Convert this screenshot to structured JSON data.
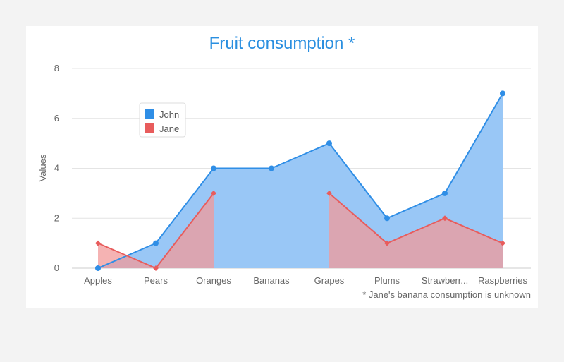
{
  "chart_data": {
    "type": "area",
    "title": "Fruit consumption *",
    "ylabel": "Values",
    "xlabel": "",
    "ylim": [
      0,
      8
    ],
    "yticks": [
      "0",
      "2",
      "4",
      "6",
      "8"
    ],
    "grid": true,
    "legend_position": "top-left",
    "categories": [
      "Apples",
      "Pears",
      "Oranges",
      "Bananas",
      "Grapes",
      "Plums",
      "Strawberr...",
      "Raspberries"
    ],
    "series": [
      {
        "name": "John",
        "color": "#2f8ee6",
        "fill": "#99c7f6",
        "marker": "circle",
        "values": [
          0,
          1,
          4,
          4,
          5,
          2,
          3,
          7
        ]
      },
      {
        "name": "Jane",
        "color": "#e85c5c",
        "fill": "#f29a9a",
        "marker": "diamond",
        "values": [
          1,
          0,
          3,
          null,
          3,
          1,
          2,
          1
        ]
      }
    ],
    "caption": "* Jane's banana consumption is unknown"
  }
}
